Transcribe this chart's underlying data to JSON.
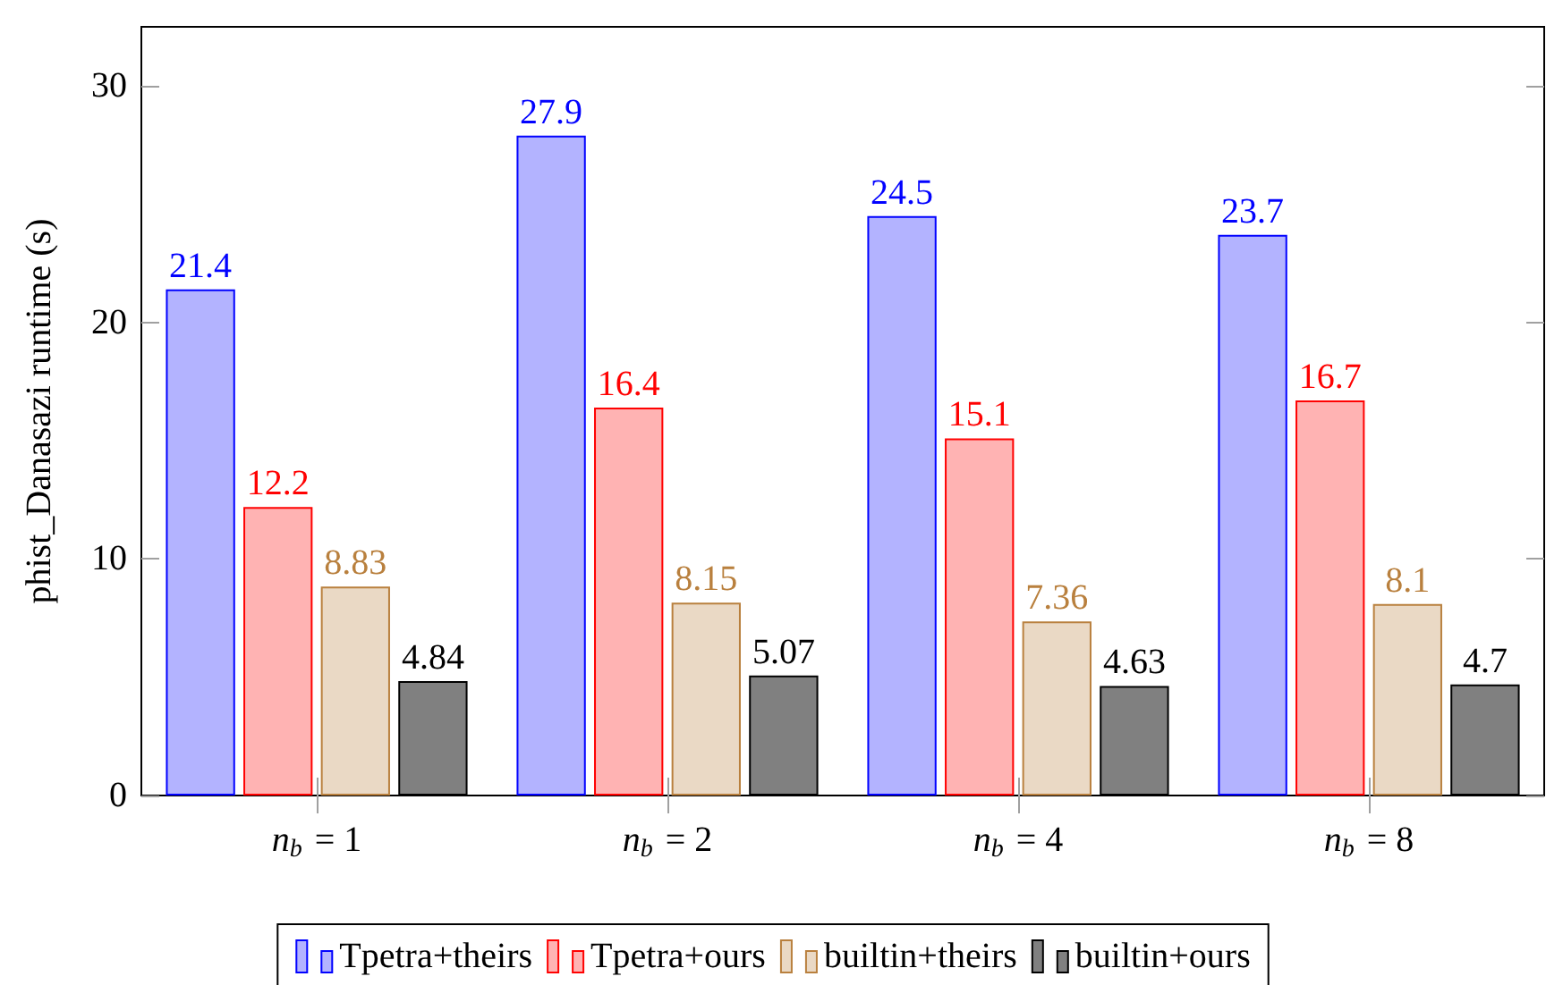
{
  "chart_data": {
    "type": "bar",
    "ylabel": "phist_Danasazi runtime (s)",
    "categories": [
      "n$_{b}$ = 1",
      "n$_{b}$ = 2",
      "n$_{b}$ = 4",
      "n$_{b}$ = 8"
    ],
    "series": [
      {
        "name": "Tpetra+theirs",
        "color": "#b3b3ff",
        "values": [
          21.4,
          27.9,
          24.5,
          23.7
        ]
      },
      {
        "name": "Tpetra+ours",
        "color": "#ffb3b3",
        "values": [
          12.2,
          16.4,
          15.1,
          16.7
        ]
      },
      {
        "name": "builtin+theirs",
        "color": "#ead9c5",
        "values": [
          8.83,
          8.15,
          7.36,
          8.1
        ]
      },
      {
        "name": "builtin+ours",
        "color": "#808080",
        "values": [
          4.84,
          5.07,
          4.63,
          4.7
        ]
      }
    ],
    "ylim": [
      0,
      32.5
    ],
    "yticks": [
      0,
      10,
      20,
      30
    ],
    "data_labels": true,
    "legend": "bottom"
  }
}
